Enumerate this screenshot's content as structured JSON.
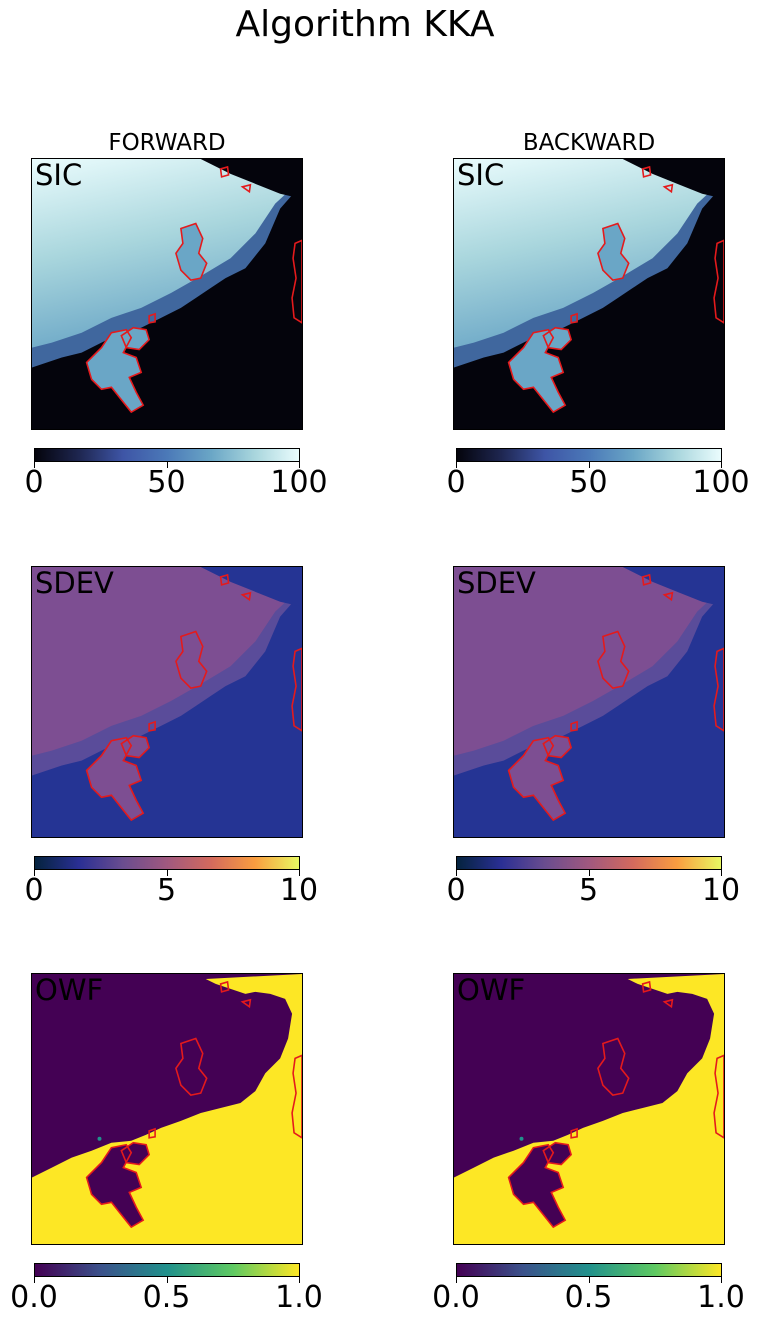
{
  "figure": {
    "title": "Algorithm KKA"
  },
  "columns": [
    "FORWARD",
    "BACKWARD"
  ],
  "chart_data": [
    {
      "type": "heatmap",
      "column": "FORWARD",
      "panel_label": "SIC",
      "colorbar": {
        "colormap": "ice",
        "range": [
          0,
          100
        ],
        "ticks": [
          "0",
          "50",
          "100"
        ]
      },
      "overlay": "coastline contours (red)"
    },
    {
      "type": "heatmap",
      "column": "BACKWARD",
      "panel_label": "SIC",
      "colorbar": {
        "colormap": "ice",
        "range": [
          0,
          100
        ],
        "ticks": [
          "0",
          "50",
          "100"
        ]
      },
      "overlay": "coastline contours (red)"
    },
    {
      "type": "heatmap",
      "column": "FORWARD",
      "panel_label": "SDEV",
      "colorbar": {
        "colormap": "thermal",
        "range": [
          0,
          10
        ],
        "ticks": [
          "0",
          "5",
          "10"
        ]
      },
      "overlay": "coastline contours (red)"
    },
    {
      "type": "heatmap",
      "column": "BACKWARD",
      "panel_label": "SDEV",
      "colorbar": {
        "colormap": "thermal",
        "range": [
          0,
          10
        ],
        "ticks": [
          "0",
          "5",
          "10"
        ]
      },
      "overlay": "coastline contours (red)"
    },
    {
      "type": "heatmap",
      "column": "FORWARD",
      "panel_label": "OWF",
      "colorbar": {
        "colormap": "viridis",
        "range": [
          0.0,
          1.0
        ],
        "ticks": [
          "0.0",
          "0.5",
          "1.0"
        ]
      },
      "overlay": "coastline contours (red)"
    },
    {
      "type": "heatmap",
      "column": "BACKWARD",
      "panel_label": "OWF",
      "colorbar": {
        "colormap": "viridis",
        "range": [
          0.0,
          1.0
        ],
        "ticks": [
          "0.0",
          "0.5",
          "1.0"
        ]
      },
      "overlay": "coastline contours (red)"
    }
  ],
  "colors": {
    "ice": [
      "#04040c",
      "#1e2650",
      "#3e55a6",
      "#4b79b8",
      "#6aa6c6",
      "#a9d6dd",
      "#eafcfd"
    ],
    "thermal": [
      "#04233e",
      "#2a2f94",
      "#6a4d8f",
      "#a0587f",
      "#d36a5d",
      "#f99d40",
      "#e8f962"
    ],
    "viridis": [
      "#440154",
      "#3b528b",
      "#21918c",
      "#5ec962",
      "#fde725"
    ],
    "coast": "#e41a1c"
  }
}
